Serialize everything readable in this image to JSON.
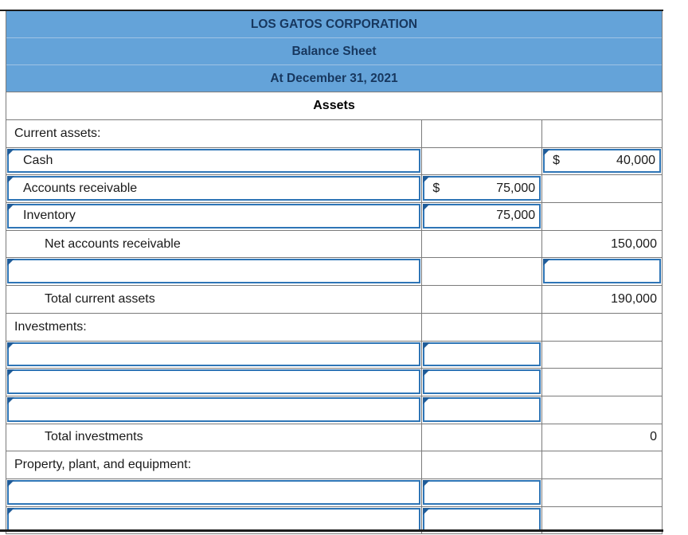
{
  "header": {
    "company_name": "LOS GATOS CORPORATION",
    "statement_title": "Balance Sheet",
    "statement_date": "At December 31, 2021",
    "section_title": "Assets"
  },
  "rows": {
    "current_assets_header": {
      "label": "Current assets:"
    },
    "cash": {
      "label": "Cash",
      "currency": "$",
      "amount": "40,000"
    },
    "accounts_receivable": {
      "label": "Accounts receivable",
      "currency": "$",
      "amount": "75,000"
    },
    "inventory": {
      "label": "Inventory",
      "amount": "75,000"
    },
    "net_accounts_receivable": {
      "label": "Net accounts receivable",
      "amount": "150,000"
    },
    "total_current_assets": {
      "label": "Total current assets",
      "amount": "190,000"
    },
    "investments_header": {
      "label": "Investments:"
    },
    "total_investments": {
      "label": "Total investments",
      "amount": "0"
    },
    "ppe_header": {
      "label": "Property, plant, and equipment:"
    }
  },
  "colors": {
    "header_background": "#64A3D9",
    "header_text": "#17375E",
    "input_border": "#2E75B6",
    "input_marker": "#1F5C99",
    "grid_line": "#7B7B7B"
  }
}
